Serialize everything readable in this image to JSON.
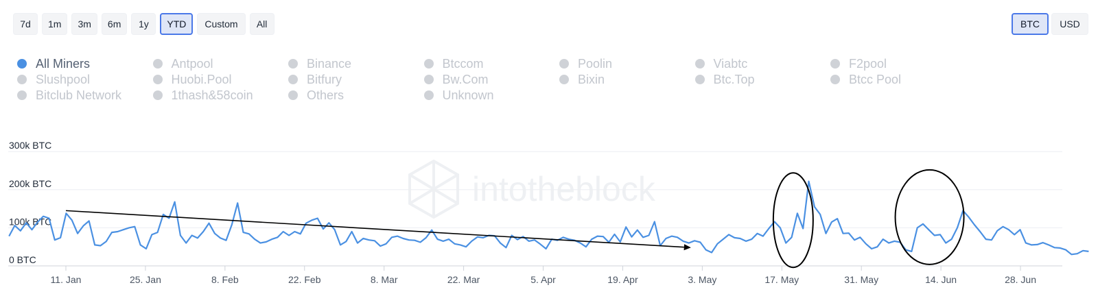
{
  "range_buttons": [
    "7d",
    "1m",
    "3m",
    "6m",
    "1y",
    "YTD",
    "Custom",
    "All"
  ],
  "active_range": "YTD",
  "currency_buttons": [
    "BTC",
    "USD"
  ],
  "active_currency": "BTC",
  "legend": [
    "All Miners",
    "Antpool",
    "Binance",
    "Btccom",
    "Poolin",
    "Viabtc",
    "F2pool",
    "Slushpool",
    "Huobi.Pool",
    "Bitfury",
    "Bw.Com",
    "Bixin",
    "Btc.Top",
    "Btcc Pool",
    "Bitclub Network",
    "1thash&58coin",
    "Others",
    "Unknown"
  ],
  "active_legend": "All Miners",
  "watermark": "intotheblock",
  "colors": {
    "line": "#4a90e2",
    "accent": "#4a78e8",
    "grid": "#eceef2",
    "annotation": "#000000"
  },
  "chart_data": {
    "type": "line",
    "title": "",
    "xlabel": "",
    "ylabel": "",
    "ylim": [
      0,
      300000
    ],
    "y_ticks": [
      {
        "value": 0,
        "label": "0 BTC"
      },
      {
        "value": 100000,
        "label": "100k BTC"
      },
      {
        "value": 200000,
        "label": "200k BTC"
      },
      {
        "value": 300000,
        "label": "300k BTC"
      }
    ],
    "x_start": "2021-01-01",
    "x_end": "2021-07-10",
    "x_ticks": [
      {
        "date": "2021-01-11",
        "label": "11. Jan"
      },
      {
        "date": "2021-01-25",
        "label": "25. Jan"
      },
      {
        "date": "2021-02-08",
        "label": "8. Feb"
      },
      {
        "date": "2021-02-22",
        "label": "22. Feb"
      },
      {
        "date": "2021-03-08",
        "label": "8. Mar"
      },
      {
        "date": "2021-03-22",
        "label": "22. Mar"
      },
      {
        "date": "2021-04-05",
        "label": "5. Apr"
      },
      {
        "date": "2021-04-19",
        "label": "19. Apr"
      },
      {
        "date": "2021-05-03",
        "label": "3. May"
      },
      {
        "date": "2021-05-17",
        "label": "17. May"
      },
      {
        "date": "2021-05-31",
        "label": "31. May"
      },
      {
        "date": "2021-06-14",
        "label": "14. Jun"
      },
      {
        "date": "2021-06-28",
        "label": "28. Jun"
      }
    ],
    "grid": true,
    "series": [
      {
        "start_date": "2021-01-01",
        "values": [
          78000,
          106000,
          92000,
          113000,
          95000,
          115000,
          130000,
          125000,
          68000,
          74000,
          138000,
          120000,
          85000,
          105000,
          118000,
          55000,
          53000,
          64000,
          88000,
          90000,
          95000,
          100000,
          103000,
          55000,
          45000,
          82000,
          88000,
          135000,
          125000,
          168000,
          80000,
          60000,
          80000,
          73000,
          90000,
          112000,
          85000,
          73000,
          67000,
          108000,
          165000,
          88000,
          84000,
          70000,
          60000,
          63000,
          70000,
          75000,
          90000,
          80000,
          90000,
          84000,
          112000,
          120000,
          125000,
          97000,
          113000,
          95000,
          55000,
          64000,
          90000,
          60000,
          72000,
          68000,
          66000,
          52000,
          58000,
          75000,
          78000,
          72000,
          68000,
          67000,
          62000,
          74000,
          94000,
          70000,
          65000,
          70000,
          58000,
          55000,
          50000,
          65000,
          76000,
          74000,
          80000,
          79000,
          60000,
          48000,
          80000,
          69000,
          77000,
          65000,
          68000,
          57000,
          45000,
          70000,
          67000,
          75000,
          70000,
          67000,
          60000,
          50000,
          70000,
          78000,
          77000,
          62000,
          83000,
          63000,
          102000,
          76000,
          94000,
          75000,
          80000,
          116000,
          53000,
          72000,
          78000,
          75000,
          65000,
          60000,
          66000,
          62000,
          42000,
          35000,
          58000,
          70000,
          82000,
          74000,
          72000,
          65000,
          70000,
          85000,
          78000,
          98000,
          116000,
          100000,
          60000,
          75000,
          138000,
          98000,
          222000,
          155000,
          135000,
          85000,
          115000,
          124000,
          85000,
          86000,
          68000,
          75000,
          58000,
          45000,
          50000,
          70000,
          60000,
          65000,
          62000,
          42000,
          38000,
          100000,
          110000,
          95000,
          80000,
          82000,
          60000,
          70000,
          100000,
          145000,
          128000,
          108000,
          90000,
          70000,
          68000,
          92000,
          103000,
          95000,
          82000,
          95000,
          60000,
          55000,
          56000,
          61000,
          55000,
          48000,
          47000,
          42000,
          30000,
          32000,
          40000,
          38000
        ]
      }
    ],
    "annotations": {
      "trend_arrow": {
        "from": {
          "date": "2021-01-11",
          "value": 145000
        },
        "to": {
          "date": "2021-05-01",
          "value": 48000
        }
      },
      "ellipses": [
        {
          "date": "2021-05-19",
          "value": 120000
        },
        {
          "date": "2021-06-12",
          "value": 128000
        }
      ]
    }
  }
}
